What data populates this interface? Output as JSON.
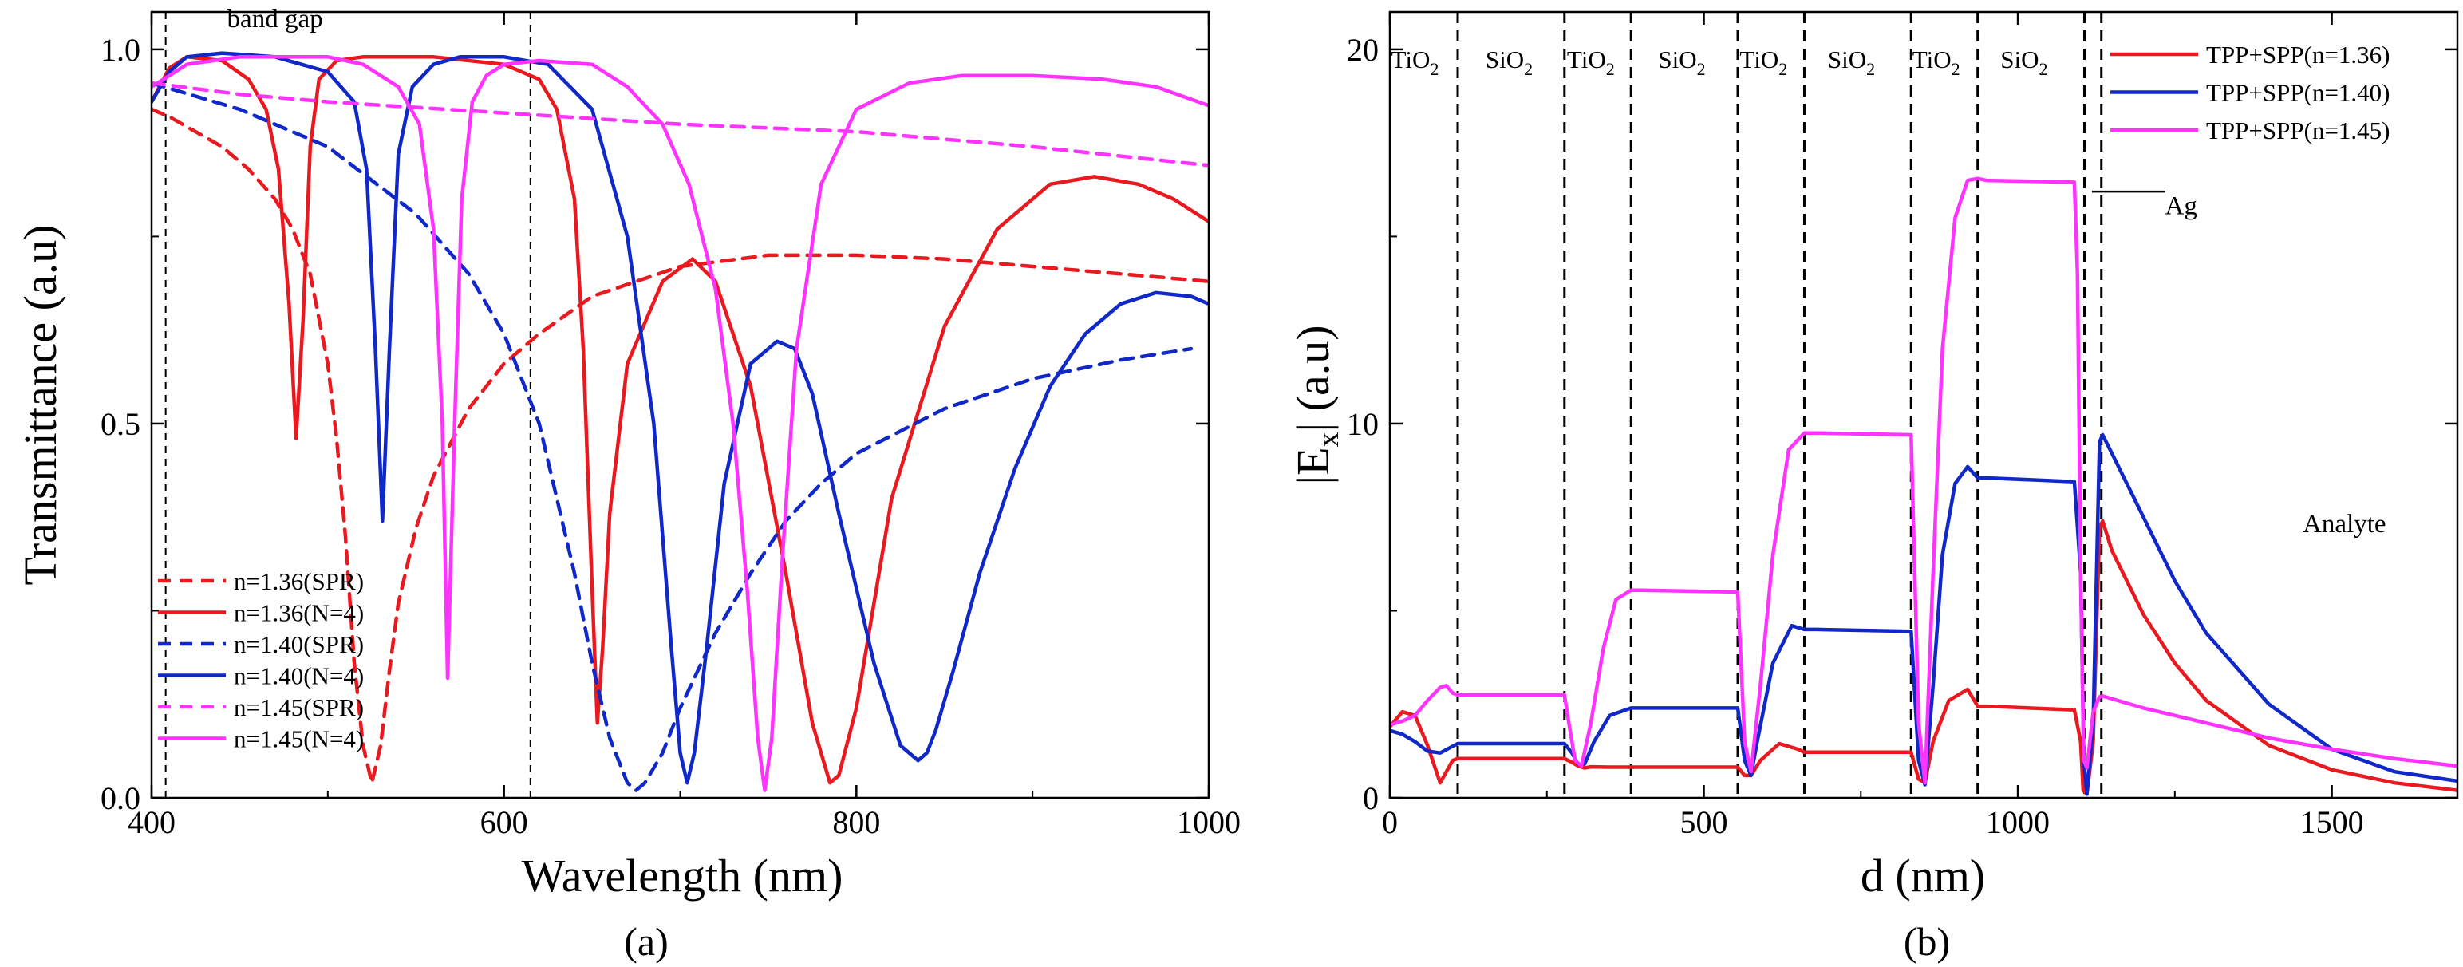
{
  "chart_data": [
    {
      "panel": "(a)",
      "type": "line",
      "xlabel": "Wavelength (nm)",
      "ylabel": "Transmittance (a.u)",
      "xlim": [
        400,
        1000
      ],
      "ylim": [
        0,
        1.05
      ],
      "xticks": [
        "400",
        "600",
        "800",
        "1000"
      ],
      "yticks": [
        "0.0",
        "0.5",
        "1.0"
      ],
      "grid": false,
      "legend_position": "bottom-left",
      "annotations": [
        {
          "text": "band gap",
          "x": 470,
          "y": 1.03
        }
      ],
      "vlines": [
        408,
        615
      ],
      "series": [
        {
          "name": "n=1.36(SPR)",
          "color": "#e8191f",
          "dash": true,
          "x": [
            400,
            410,
            425,
            440,
            455,
            470,
            480,
            490,
            500,
            505,
            510,
            515,
            520,
            525,
            530,
            535,
            540,
            550,
            560,
            580,
            600,
            620,
            650,
            700,
            750,
            800,
            850,
            900,
            950,
            1000
          ],
          "y": [
            0.92,
            0.91,
            0.89,
            0.87,
            0.84,
            0.8,
            0.76,
            0.7,
            0.58,
            0.48,
            0.35,
            0.18,
            0.07,
            0.02,
            0.07,
            0.17,
            0.26,
            0.36,
            0.43,
            0.52,
            0.58,
            0.62,
            0.67,
            0.71,
            0.725,
            0.725,
            0.72,
            0.71,
            0.7,
            0.69
          ]
        },
        {
          "name": "n=1.36(N=4)",
          "color": "#e8191f",
          "dash": false,
          "x": [
            400,
            410,
            420,
            440,
            455,
            465,
            472,
            478,
            482,
            486,
            490,
            495,
            505,
            520,
            560,
            600,
            620,
            630,
            640,
            645,
            650,
            653,
            656,
            660,
            670,
            690,
            707,
            720,
            740,
            760,
            775,
            785,
            790,
            800,
            820,
            850,
            880,
            910,
            935,
            960,
            980,
            1000
          ],
          "y": [
            0.93,
            0.975,
            0.99,
            0.985,
            0.96,
            0.92,
            0.84,
            0.66,
            0.48,
            0.64,
            0.87,
            0.96,
            0.985,
            0.99,
            0.99,
            0.98,
            0.96,
            0.92,
            0.8,
            0.6,
            0.28,
            0.1,
            0.2,
            0.38,
            0.58,
            0.69,
            0.72,
            0.69,
            0.55,
            0.3,
            0.1,
            0.02,
            0.03,
            0.12,
            0.4,
            0.63,
            0.76,
            0.82,
            0.83,
            0.82,
            0.8,
            0.77
          ]
        },
        {
          "name": "n=1.40(SPR)",
          "color": "#1028c8",
          "dash": true,
          "x": [
            400,
            450,
            500,
            550,
            580,
            600,
            620,
            640,
            650,
            660,
            670,
            675,
            680,
            690,
            700,
            720,
            740,
            760,
            780,
            800,
            850,
            900,
            950,
            990
          ],
          "y": [
            0.955,
            0.92,
            0.87,
            0.78,
            0.7,
            0.62,
            0.5,
            0.3,
            0.18,
            0.08,
            0.02,
            0.01,
            0.02,
            0.06,
            0.12,
            0.22,
            0.3,
            0.37,
            0.42,
            0.46,
            0.52,
            0.56,
            0.585,
            0.6
          ]
        },
        {
          "name": "n=1.40(N=4)",
          "color": "#1028c8",
          "dash": false,
          "x": [
            400,
            410,
            420,
            440,
            470,
            500,
            515,
            522,
            527,
            531,
            535,
            540,
            548,
            560,
            575,
            600,
            625,
            650,
            670,
            685,
            695,
            700,
            704,
            708,
            715,
            725,
            740,
            755,
            765,
            775,
            790,
            810,
            825,
            835,
            840,
            845,
            855,
            870,
            890,
            910,
            930,
            950,
            970,
            990,
            1000
          ],
          "y": [
            0.93,
            0.97,
            0.99,
            0.995,
            0.99,
            0.97,
            0.93,
            0.84,
            0.6,
            0.37,
            0.6,
            0.86,
            0.95,
            0.98,
            0.99,
            0.99,
            0.98,
            0.92,
            0.75,
            0.5,
            0.2,
            0.06,
            0.02,
            0.06,
            0.2,
            0.42,
            0.58,
            0.61,
            0.6,
            0.54,
            0.38,
            0.18,
            0.07,
            0.05,
            0.06,
            0.09,
            0.17,
            0.3,
            0.44,
            0.55,
            0.62,
            0.66,
            0.675,
            0.67,
            0.66
          ]
        },
        {
          "name": "n=1.45(SPR)",
          "color": "#ff33ff",
          "dash": true,
          "x": [
            400,
            450,
            500,
            600,
            700,
            800,
            900,
            1000
          ],
          "y": [
            0.955,
            0.94,
            0.93,
            0.915,
            0.9,
            0.89,
            0.87,
            0.845
          ]
        },
        {
          "name": "n=1.45(N=4)",
          "color": "#ff33ff",
          "dash": false,
          "x": [
            400,
            420,
            450,
            480,
            500,
            520,
            540,
            552,
            560,
            565,
            568,
            572,
            576,
            582,
            590,
            600,
            620,
            650,
            670,
            690,
            705,
            720,
            730,
            738,
            744,
            748,
            752,
            758,
            766,
            780,
            800,
            830,
            860,
            900,
            940,
            970,
            1000
          ],
          "y": [
            0.95,
            0.98,
            0.99,
            0.99,
            0.99,
            0.98,
            0.95,
            0.9,
            0.76,
            0.5,
            0.16,
            0.5,
            0.8,
            0.93,
            0.965,
            0.98,
            0.985,
            0.98,
            0.95,
            0.9,
            0.82,
            0.68,
            0.5,
            0.28,
            0.08,
            0.01,
            0.08,
            0.32,
            0.6,
            0.82,
            0.92,
            0.955,
            0.965,
            0.965,
            0.96,
            0.95,
            0.925
          ]
        }
      ]
    },
    {
      "panel": "(b)",
      "type": "line",
      "xlabel": "d (nm)",
      "ylabel": "|E",
      "ylabel_sub": "x",
      "ylabel_end": "| (a.u)",
      "xlim": [
        0,
        1700
      ],
      "ylim": [
        0,
        21
      ],
      "xticks": [
        "0",
        "500",
        "1000",
        "1500"
      ],
      "yticks": [
        "0",
        "10",
        "20"
      ],
      "grid": false,
      "legend_position": "top-right",
      "annotations": [
        {
          "text": "Ag",
          "x": 1260,
          "y": 15.6
        },
        {
          "text": "Analyte",
          "x": 1520,
          "y": 7.1
        }
      ],
      "layer_labels": [
        {
          "base": "TiO",
          "sub": "2",
          "x": 40
        },
        {
          "base": "SiO",
          "sub": "2",
          "x": 190
        },
        {
          "base": "TiO",
          "sub": "2",
          "x": 320
        },
        {
          "base": "SiO",
          "sub": "2",
          "x": 465
        },
        {
          "base": "TiO",
          "sub": "2",
          "x": 595
        },
        {
          "base": "SiO",
          "sub": "2",
          "x": 735
        },
        {
          "base": "TiO",
          "sub": "2",
          "x": 870
        },
        {
          "base": "SiO",
          "sub": "2",
          "x": 1010
        }
      ],
      "vlines": [
        108,
        278,
        384,
        554,
        660,
        830,
        936,
        1106,
        1133
      ],
      "series": [
        {
          "name": "TPP+SPP(n=1.36)",
          "color": "#e8191f",
          "x": [
            0,
            20,
            40,
            60,
            80,
            90,
            100,
            108,
            120,
            278,
            290,
            300,
            310,
            320,
            350,
            384,
            400,
            554,
            565,
            575,
            590,
            620,
            650,
            660,
            680,
            830,
            842,
            852,
            865,
            890,
            920,
            936,
            950,
            1090,
            1100,
            1104,
            1110,
            1120,
            1130,
            1135,
            1150,
            1200,
            1250,
            1300,
            1400,
            1500,
            1600,
            1700
          ],
          "y": [
            1.9,
            2.3,
            2.2,
            1.4,
            0.4,
            0.7,
            1.0,
            1.05,
            1.05,
            1.05,
            0.95,
            0.85,
            0.8,
            0.83,
            0.82,
            0.82,
            0.82,
            0.82,
            0.6,
            0.6,
            1.0,
            1.45,
            1.3,
            1.22,
            1.22,
            1.22,
            0.5,
            0.4,
            1.5,
            2.6,
            2.9,
            2.45,
            2.45,
            2.35,
            1.5,
            0.2,
            0.1,
            1.5,
            7.2,
            7.4,
            6.6,
            4.9,
            3.6,
            2.6,
            1.4,
            0.75,
            0.4,
            0.2
          ]
        },
        {
          "name": "TPP+SPP(n=1.40)",
          "color": "#1028c8",
          "x": [
            0,
            20,
            40,
            60,
            80,
            100,
            108,
            120,
            278,
            290,
            300,
            310,
            325,
            350,
            384,
            400,
            554,
            565,
            575,
            585,
            610,
            640,
            660,
            680,
            830,
            842,
            852,
            865,
            880,
            900,
            920,
            936,
            950,
            1090,
            1100,
            1105,
            1110,
            1120,
            1130,
            1135,
            1150,
            1200,
            1250,
            1300,
            1400,
            1500,
            1600,
            1700
          ],
          "y": [
            1.8,
            1.7,
            1.5,
            1.25,
            1.2,
            1.38,
            1.45,
            1.45,
            1.45,
            1.2,
            0.9,
            0.9,
            1.5,
            2.2,
            2.4,
            2.4,
            2.4,
            1.0,
            0.6,
            1.5,
            3.6,
            4.6,
            4.5,
            4.5,
            4.45,
            1.0,
            0.35,
            3.0,
            6.5,
            8.4,
            8.85,
            8.55,
            8.55,
            8.45,
            6.0,
            1.0,
            0.1,
            2.0,
            9.5,
            9.7,
            9.2,
            7.5,
            5.8,
            4.4,
            2.5,
            1.3,
            0.7,
            0.45
          ]
        },
        {
          "name": "TPP+SPP(n=1.45)",
          "color": "#ff33ff",
          "x": [
            0,
            20,
            40,
            60,
            80,
            90,
            100,
            108,
            120,
            278,
            285,
            295,
            305,
            320,
            340,
            360,
            384,
            400,
            554,
            565,
            575,
            590,
            610,
            635,
            660,
            680,
            830,
            842,
            852,
            865,
            880,
            900,
            920,
            936,
            950,
            1090,
            1095,
            1100,
            1105,
            1110,
            1120,
            1130,
            1135,
            1200,
            1300,
            1400,
            1500,
            1600,
            1700
          ],
          "y": [
            1.95,
            2.05,
            2.2,
            2.6,
            2.95,
            3.0,
            2.8,
            2.75,
            2.75,
            2.75,
            2.0,
            1.0,
            0.85,
            2.0,
            4.0,
            5.3,
            5.55,
            5.55,
            5.5,
            1.5,
            0.7,
            3.0,
            6.5,
            9.3,
            9.75,
            9.75,
            9.7,
            2.0,
            0.4,
            6.0,
            12.0,
            15.5,
            16.5,
            16.55,
            16.5,
            16.45,
            14.0,
            6.0,
            1.0,
            0.8,
            2.3,
            2.7,
            2.72,
            2.4,
            2.0,
            1.6,
            1.3,
            1.05,
            0.85
          ]
        }
      ]
    }
  ]
}
